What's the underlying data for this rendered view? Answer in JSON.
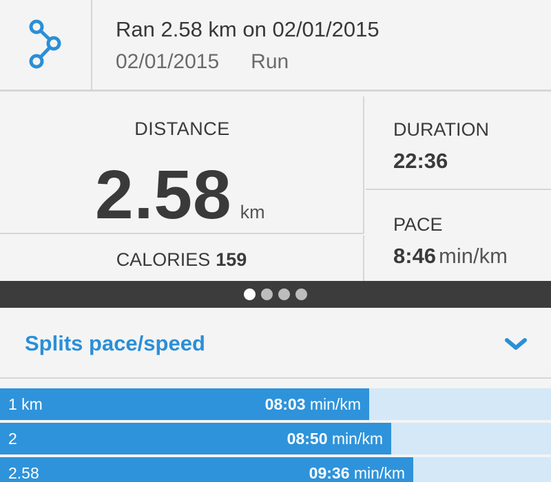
{
  "header": {
    "icon": "route-share-icon",
    "title": "Ran 2.58 km on 02/01/2015",
    "date": "02/01/2015",
    "activity_type": "Run"
  },
  "stats": {
    "distance_label": "DISTANCE",
    "distance_value": "2.58",
    "distance_unit": "km",
    "calories_label": "CALORIES",
    "calories_value": "159",
    "duration_label": "DURATION",
    "duration_value": "22:36",
    "pace_label": "PACE",
    "pace_value": "8:46",
    "pace_unit": "min/km"
  },
  "pager": {
    "pages": 4,
    "active": 0
  },
  "splits": {
    "title": "Splits pace/speed",
    "toggle_icon": "chevron-down-icon",
    "pace_unit": "min/km",
    "rows": [
      {
        "label": "1 km",
        "pace": "08:03",
        "fraction": 0.67
      },
      {
        "label": "2",
        "pace": "08:50",
        "fraction": 0.71
      },
      {
        "label": "2.58",
        "pace": "09:36",
        "fraction": 0.75
      }
    ]
  },
  "colors": {
    "accent": "#2a8fd8",
    "bar": "#2e93da",
    "bar_track": "#d4e8f7",
    "pager_bg": "#3c3c3c"
  }
}
